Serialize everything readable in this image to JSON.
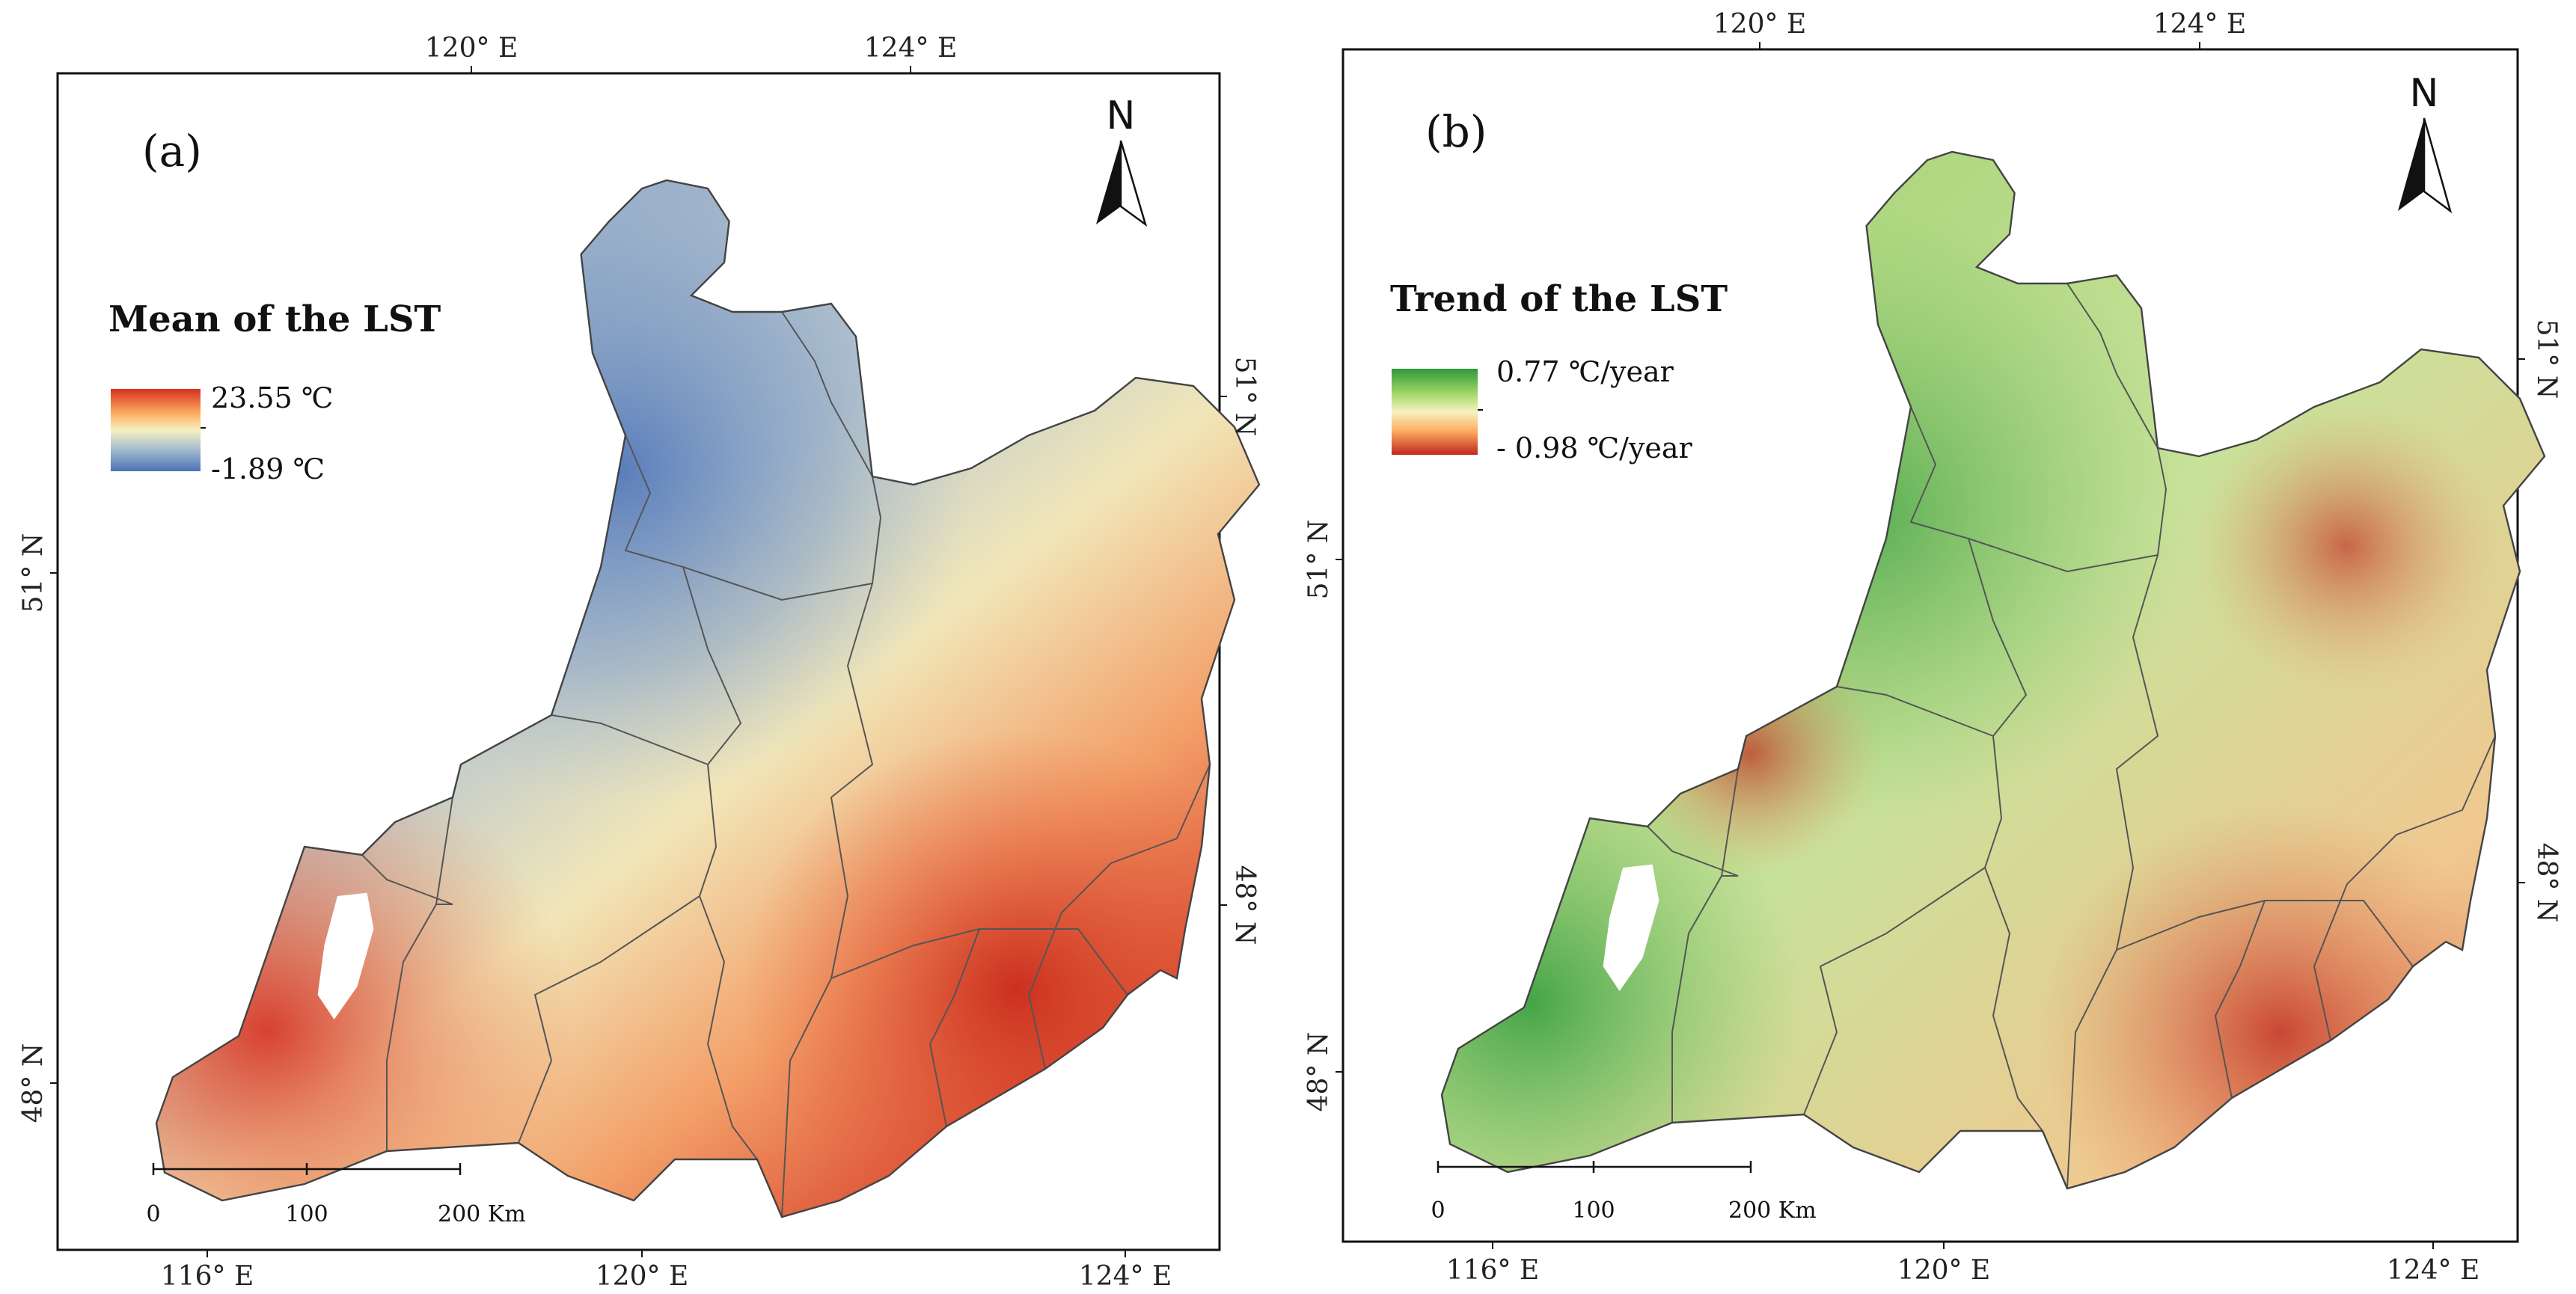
{
  "figure": {
    "panels": [
      {
        "id": "a",
        "panel_label": "(a)",
        "legend_title": "Mean of the LST",
        "legend_max": "23.55 ℃",
        "legend_min": "-1.89 ℃",
        "legend_colors": [
          "#d7301f",
          "#fdae61",
          "#f7f1c0",
          "#a9bfcf",
          "#4a72b8"
        ],
        "top_ticks": [
          "120° E",
          "124° E"
        ],
        "bottom_ticks": [
          "116° E",
          "120° E",
          "124° E"
        ],
        "left_ticks": [
          "51° N",
          "48° N"
        ],
        "right_ticks": [
          "51° N",
          "48° N"
        ],
        "north_label": "N",
        "scale_labels": [
          "0",
          "100",
          "200 Km"
        ]
      },
      {
        "id": "b",
        "panel_label": "(b)",
        "legend_title": "Trend of the LST",
        "legend_max": "0.77 ℃/year",
        "legend_min": "- 0.98 ℃/year",
        "legend_colors": [
          "#2e9a3a",
          "#a6d96a",
          "#f7f1c0",
          "#fdae61",
          "#c0281c"
        ],
        "top_ticks": [
          "120° E",
          "124° E"
        ],
        "bottom_ticks": [
          "116° E",
          "120° E",
          "124° E"
        ],
        "left_ticks": [
          "51° N",
          "48° N"
        ],
        "right_ticks": [
          "51° N",
          "48° N"
        ],
        "north_label": "N",
        "scale_labels": [
          "0",
          "100",
          "200 Km"
        ]
      }
    ]
  }
}
